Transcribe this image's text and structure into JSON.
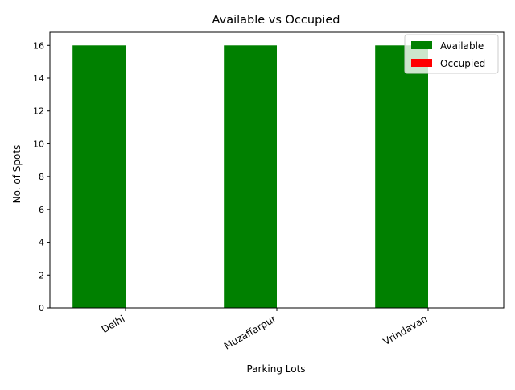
{
  "chart_data": {
    "type": "bar",
    "title": "Available vs Occupied",
    "xlabel": "Parking Lots",
    "ylabel": "No. of Spots",
    "categories": [
      "Delhi",
      "Muzaffarpur",
      "Vrindavan"
    ],
    "series": [
      {
        "name": "Available",
        "values": [
          16,
          16,
          16
        ],
        "color": "#008000"
      },
      {
        "name": "Occupied",
        "values": [
          0,
          0,
          0
        ],
        "color": "#ff0000"
      }
    ],
    "ylim": [
      0,
      16.8
    ],
    "yticks": [
      0,
      2,
      4,
      6,
      8,
      10,
      12,
      14,
      16
    ],
    "grid": false,
    "legend_position": "top-right",
    "xtick_rotation_deg": 30
  }
}
